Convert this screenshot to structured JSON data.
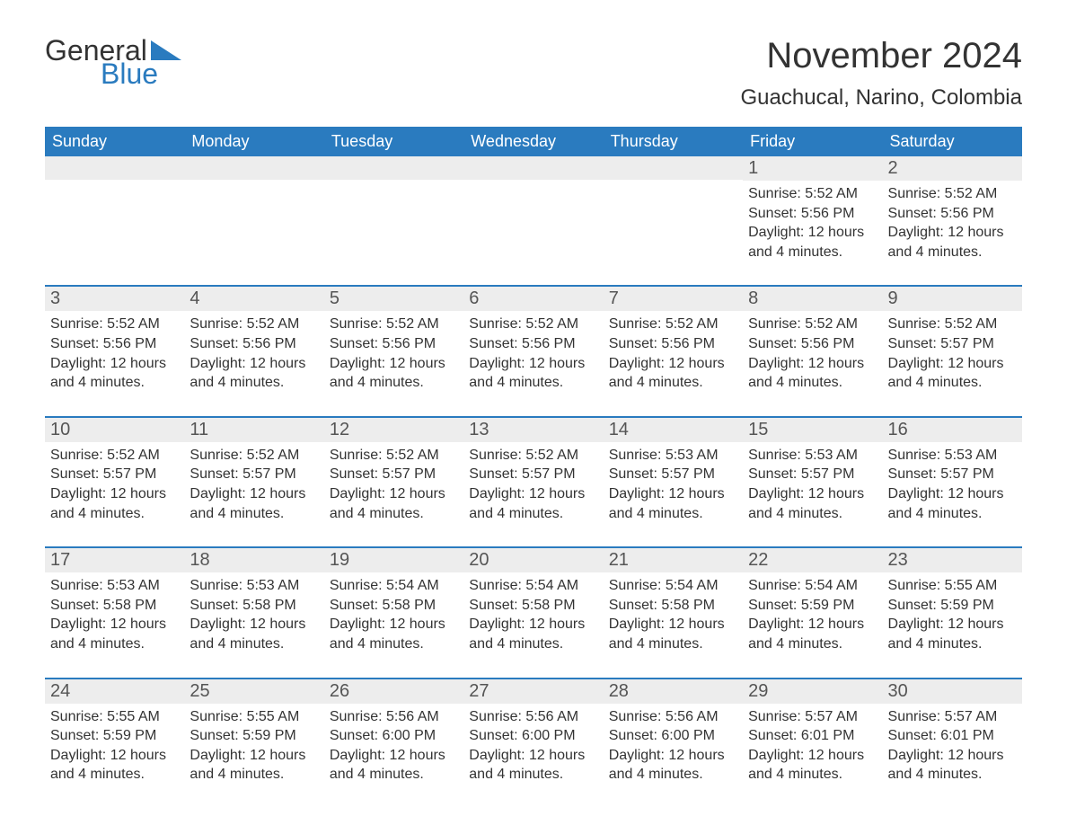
{
  "logo": {
    "word1": "General",
    "word2": "Blue",
    "tri_color": "#2a7bbf"
  },
  "title": "November 2024",
  "location": "Guachucal, Narino, Colombia",
  "colors": {
    "header_bg": "#2a7bbf",
    "header_text": "#ffffff",
    "daynum_bg": "#ededed",
    "text": "#333333",
    "week_border": "#2a7bbf",
    "background": "#ffffff"
  },
  "weekdays": [
    "Sunday",
    "Monday",
    "Tuesday",
    "Wednesday",
    "Thursday",
    "Friday",
    "Saturday"
  ],
  "weeks": [
    [
      null,
      null,
      null,
      null,
      null,
      {
        "n": "1",
        "sunrise": "5:52 AM",
        "sunset": "5:56 PM",
        "daylight": "12 hours and 4 minutes."
      },
      {
        "n": "2",
        "sunrise": "5:52 AM",
        "sunset": "5:56 PM",
        "daylight": "12 hours and 4 minutes."
      }
    ],
    [
      {
        "n": "3",
        "sunrise": "5:52 AM",
        "sunset": "5:56 PM",
        "daylight": "12 hours and 4 minutes."
      },
      {
        "n": "4",
        "sunrise": "5:52 AM",
        "sunset": "5:56 PM",
        "daylight": "12 hours and 4 minutes."
      },
      {
        "n": "5",
        "sunrise": "5:52 AM",
        "sunset": "5:56 PM",
        "daylight": "12 hours and 4 minutes."
      },
      {
        "n": "6",
        "sunrise": "5:52 AM",
        "sunset": "5:56 PM",
        "daylight": "12 hours and 4 minutes."
      },
      {
        "n": "7",
        "sunrise": "5:52 AM",
        "sunset": "5:56 PM",
        "daylight": "12 hours and 4 minutes."
      },
      {
        "n": "8",
        "sunrise": "5:52 AM",
        "sunset": "5:56 PM",
        "daylight": "12 hours and 4 minutes."
      },
      {
        "n": "9",
        "sunrise": "5:52 AM",
        "sunset": "5:57 PM",
        "daylight": "12 hours and 4 minutes."
      }
    ],
    [
      {
        "n": "10",
        "sunrise": "5:52 AM",
        "sunset": "5:57 PM",
        "daylight": "12 hours and 4 minutes."
      },
      {
        "n": "11",
        "sunrise": "5:52 AM",
        "sunset": "5:57 PM",
        "daylight": "12 hours and 4 minutes."
      },
      {
        "n": "12",
        "sunrise": "5:52 AM",
        "sunset": "5:57 PM",
        "daylight": "12 hours and 4 minutes."
      },
      {
        "n": "13",
        "sunrise": "5:52 AM",
        "sunset": "5:57 PM",
        "daylight": "12 hours and 4 minutes."
      },
      {
        "n": "14",
        "sunrise": "5:53 AM",
        "sunset": "5:57 PM",
        "daylight": "12 hours and 4 minutes."
      },
      {
        "n": "15",
        "sunrise": "5:53 AM",
        "sunset": "5:57 PM",
        "daylight": "12 hours and 4 minutes."
      },
      {
        "n": "16",
        "sunrise": "5:53 AM",
        "sunset": "5:57 PM",
        "daylight": "12 hours and 4 minutes."
      }
    ],
    [
      {
        "n": "17",
        "sunrise": "5:53 AM",
        "sunset": "5:58 PM",
        "daylight": "12 hours and 4 minutes."
      },
      {
        "n": "18",
        "sunrise": "5:53 AM",
        "sunset": "5:58 PM",
        "daylight": "12 hours and 4 minutes."
      },
      {
        "n": "19",
        "sunrise": "5:54 AM",
        "sunset": "5:58 PM",
        "daylight": "12 hours and 4 minutes."
      },
      {
        "n": "20",
        "sunrise": "5:54 AM",
        "sunset": "5:58 PM",
        "daylight": "12 hours and 4 minutes."
      },
      {
        "n": "21",
        "sunrise": "5:54 AM",
        "sunset": "5:58 PM",
        "daylight": "12 hours and 4 minutes."
      },
      {
        "n": "22",
        "sunrise": "5:54 AM",
        "sunset": "5:59 PM",
        "daylight": "12 hours and 4 minutes."
      },
      {
        "n": "23",
        "sunrise": "5:55 AM",
        "sunset": "5:59 PM",
        "daylight": "12 hours and 4 minutes."
      }
    ],
    [
      {
        "n": "24",
        "sunrise": "5:55 AM",
        "sunset": "5:59 PM",
        "daylight": "12 hours and 4 minutes."
      },
      {
        "n": "25",
        "sunrise": "5:55 AM",
        "sunset": "5:59 PM",
        "daylight": "12 hours and 4 minutes."
      },
      {
        "n": "26",
        "sunrise": "5:56 AM",
        "sunset": "6:00 PM",
        "daylight": "12 hours and 4 minutes."
      },
      {
        "n": "27",
        "sunrise": "5:56 AM",
        "sunset": "6:00 PM",
        "daylight": "12 hours and 4 minutes."
      },
      {
        "n": "28",
        "sunrise": "5:56 AM",
        "sunset": "6:00 PM",
        "daylight": "12 hours and 4 minutes."
      },
      {
        "n": "29",
        "sunrise": "5:57 AM",
        "sunset": "6:01 PM",
        "daylight": "12 hours and 4 minutes."
      },
      {
        "n": "30",
        "sunrise": "5:57 AM",
        "sunset": "6:01 PM",
        "daylight": "12 hours and 4 minutes."
      }
    ]
  ],
  "labels": {
    "sunrise": "Sunrise: ",
    "sunset": "Sunset: ",
    "daylight": "Daylight: "
  }
}
